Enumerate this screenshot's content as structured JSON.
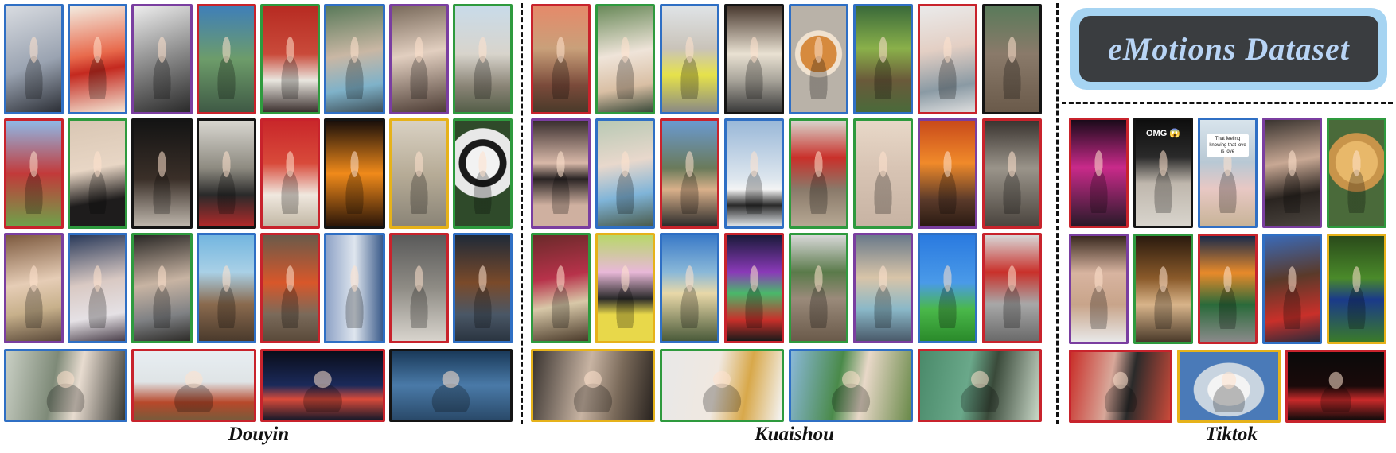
{
  "banner": {
    "title": "eMotions Dataset"
  },
  "platforms": [
    {
      "name": "Douyin"
    },
    {
      "name": "Kuaishou"
    },
    {
      "name": "Tiktok"
    }
  ],
  "border_colors": {
    "red": "#c8232c",
    "blue": "#2f6fc4",
    "green": "#2e9a3e",
    "purple": "#7a3ea0",
    "yellow": "#e6b21a",
    "black": "#141414"
  },
  "overlay_texts": {
    "tiktok_omg": "OMG 😱",
    "tiktok_caption": "That feeling knowing that love is love"
  }
}
